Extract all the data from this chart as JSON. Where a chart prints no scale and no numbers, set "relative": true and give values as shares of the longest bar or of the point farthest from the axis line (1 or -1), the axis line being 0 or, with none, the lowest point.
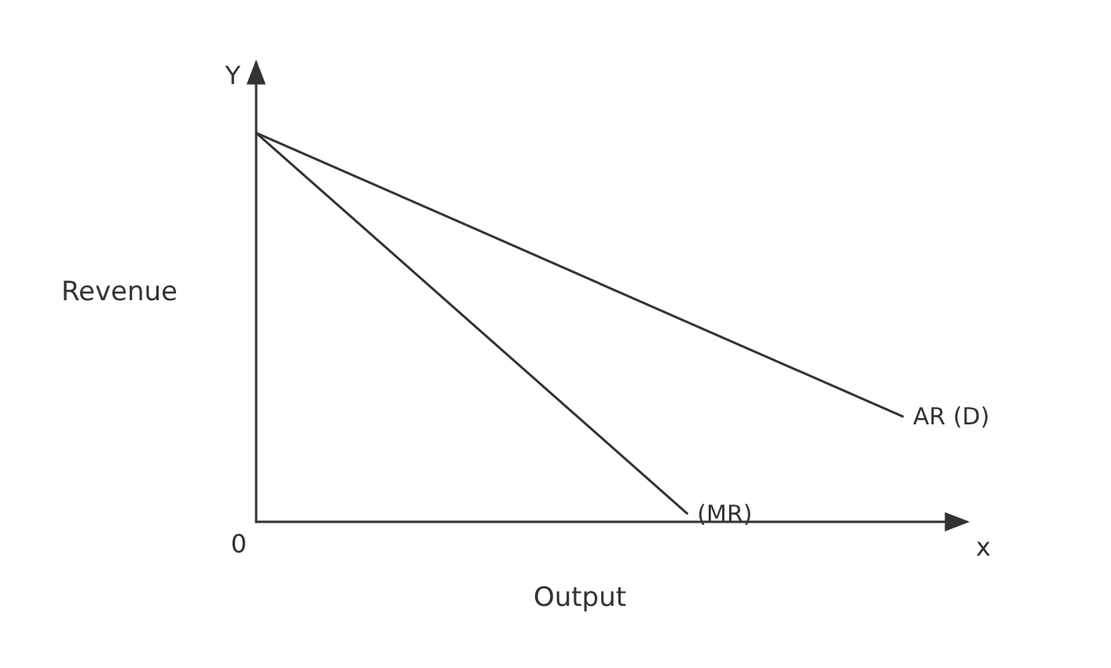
{
  "chart_data": {
    "type": "line",
    "relative": true,
    "xlabel": "Output",
    "ylabel": "Revenue",
    "annotations": [
      "Y",
      "0",
      "x"
    ],
    "categories": [
      null,
      null,
      null,
      null
    ],
    "series": [
      {
        "name": "AR (D)",
        "color": "#333333",
        "values": [
          1,
          0.757,
          0.513,
          0.27
        ]
      },
      {
        "name": "(MR)",
        "color": "#333333",
        "values": [
          1,
          0.51,
          0.02,
          null
        ]
      }
    ],
    "grid": false,
    "legend": false,
    "marker": "none",
    "line_style": "solid",
    "tick_labels": false
  }
}
